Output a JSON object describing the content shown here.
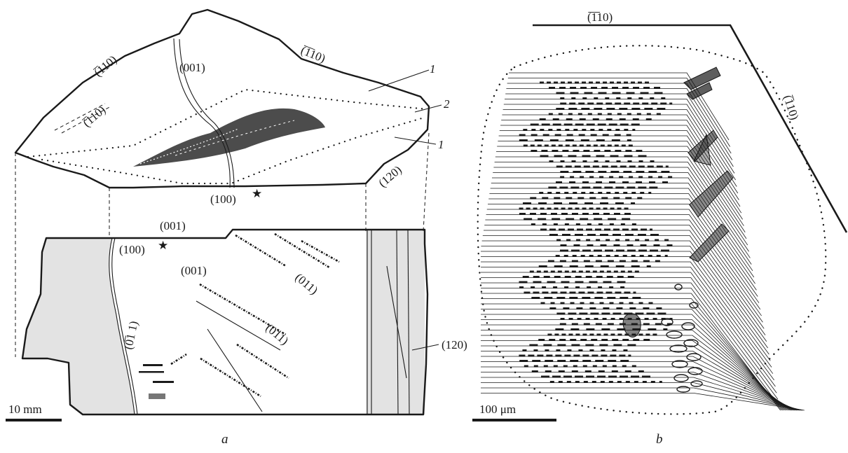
{
  "panel_a": {
    "letter": "a",
    "scale_label": "10 mm",
    "top_face": {
      "labels": {
        "face_110_top": "(̅1̅10)",
        "face_110_left": "(̅110)",
        "face_110_inner": "(̅110)",
        "face_001": "(001)",
        "face_120": "(120)",
        "face_100": "(100)",
        "zone_1_upper": "1",
        "zone_2": "2",
        "zone_1_lower": "1"
      },
      "star": "★"
    },
    "side_face": {
      "labels": {
        "face_001_edge": "(001)",
        "face_100": "(100)",
        "face_001_inner": "(001)",
        "face_011_upper": "(011)",
        "face_011_lower": "(011)",
        "face_0m11": "(0̅1 1)",
        "face_120": "(120)"
      },
      "star": "★"
    }
  },
  "panel_b": {
    "letter": "b",
    "scale_label": "100 μm",
    "labels": {
      "face_top": "(̅1̅10)",
      "face_right": "(̅110)"
    }
  }
}
